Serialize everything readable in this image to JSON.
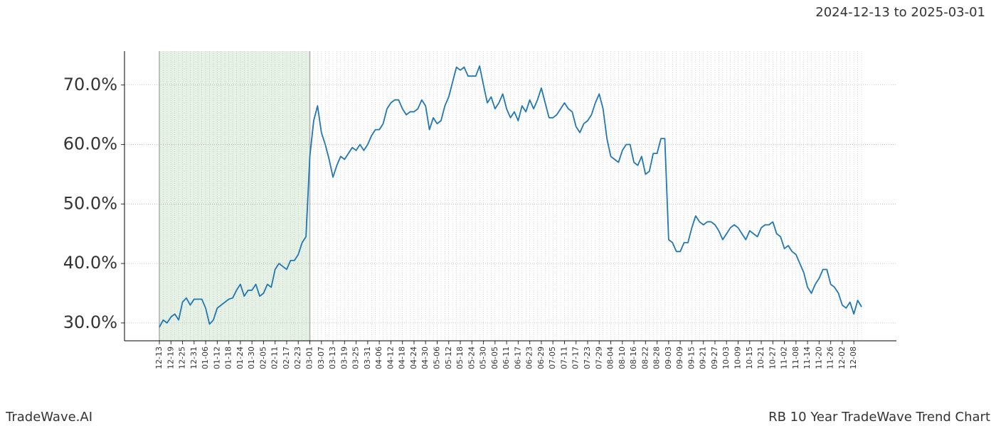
{
  "chart_data": {
    "type": "line",
    "title": "RB 10 Year TradeWave Trend Chart",
    "subtitle": "2024-12-13 to 2025-03-01",
    "brand": "TradeWave.AI",
    "highlight_range": [
      "12-13",
      "03-01"
    ],
    "categories": [
      "12-13",
      null,
      null,
      "12-19",
      null,
      null,
      "12-25",
      null,
      null,
      "12-31",
      null,
      null,
      "01-06",
      null,
      null,
      "01-12",
      null,
      null,
      "01-18",
      null,
      null,
      "01-24",
      null,
      null,
      "01-30",
      null,
      null,
      "02-05",
      null,
      null,
      "02-11",
      null,
      null,
      "02-17",
      null,
      null,
      "02-23",
      null,
      null,
      "03-01",
      null,
      null,
      "03-07",
      null,
      null,
      "03-13",
      null,
      null,
      "03-19",
      null,
      null,
      "03-25",
      null,
      null,
      "03-31",
      null,
      null,
      "04-06",
      null,
      null,
      "04-12",
      null,
      null,
      "04-18",
      null,
      null,
      "04-24",
      null,
      null,
      "04-30",
      null,
      null,
      "05-06",
      null,
      null,
      "05-12",
      null,
      null,
      "05-18",
      null,
      null,
      "05-24",
      null,
      null,
      "05-30",
      null,
      null,
      "06-05",
      null,
      null,
      "06-11",
      null,
      null,
      "06-17",
      null,
      null,
      "06-23",
      null,
      null,
      "06-29",
      null,
      null,
      "07-05",
      null,
      null,
      "07-11",
      null,
      null,
      "07-17",
      null,
      null,
      "07-23",
      null,
      null,
      "07-29",
      null,
      null,
      "08-04",
      null,
      null,
      "08-10",
      null,
      null,
      "08-16",
      null,
      null,
      "08-22",
      null,
      null,
      "08-28",
      null,
      null,
      "09-03",
      null,
      null,
      "09-09",
      null,
      null,
      "09-15",
      null,
      null,
      "09-21",
      null,
      null,
      "09-27",
      null,
      null,
      "10-03",
      null,
      null,
      "10-09",
      null,
      null,
      "10-15",
      null,
      null,
      "10-21",
      null,
      null,
      "10-27",
      null,
      null,
      "11-02",
      null,
      null,
      "11-08",
      null,
      null,
      "11-14",
      null,
      null,
      "11-20",
      null,
      null,
      "11-26",
      null,
      null,
      "12-02",
      null,
      null,
      "12-08",
      null,
      null
    ],
    "series": [
      {
        "color": "#1f77b4",
        "values": [
          29.3,
          30.5,
          30.0,
          31,
          31.5,
          30.5,
          33.5,
          34.2,
          33,
          34,
          34,
          34,
          32.5,
          29.8,
          30.5,
          32.5,
          33,
          33.5,
          34,
          34.2,
          35.5,
          36.5,
          34.5,
          35.5,
          35.5,
          36.5,
          34.5,
          35,
          36.5,
          36,
          39,
          40,
          39.5,
          39,
          40.5,
          40.5,
          41.5,
          43.5,
          44.5,
          58,
          64,
          66.5,
          62,
          60,
          57.5,
          54.5,
          56.5,
          58,
          57.5,
          58.5,
          59.5,
          59,
          60,
          59,
          60,
          61.5,
          62.5,
          62.5,
          63.5,
          66,
          67,
          67.5,
          67.5,
          66,
          65,
          65.5,
          65.5,
          66,
          67.5,
          66.5,
          62.5,
          64.5,
          63.5,
          64,
          66.5,
          68,
          70.5,
          73,
          72.5,
          73,
          71.5,
          71.5,
          71.5,
          73.2,
          70,
          67,
          68,
          66,
          67,
          68.5,
          66,
          64.5,
          65.5,
          64,
          66.5,
          65.5,
          67.5,
          66,
          67.5,
          69.5,
          67,
          64.5,
          64.5,
          65,
          66,
          67,
          66,
          65.5,
          63,
          62,
          63.5,
          64,
          65,
          67,
          68.5,
          66,
          61,
          58,
          57.5,
          57,
          59,
          60,
          60,
          57,
          56.5,
          58,
          55,
          55.5,
          58.5,
          58.5,
          61,
          61,
          44,
          43.5,
          42,
          42,
          43.5,
          43.5,
          46,
          48,
          47,
          46.5,
          47,
          47,
          46.5,
          45.5,
          44,
          45,
          46,
          46.5,
          46,
          45,
          44,
          45.5,
          45,
          44.5,
          46,
          46.5,
          46.5,
          47,
          45,
          44.5,
          42.5,
          43,
          42,
          41.5,
          40,
          38.5,
          36,
          35,
          36.5,
          37.5,
          39,
          39,
          36.5,
          36,
          35,
          33,
          32.5,
          33.5,
          31.5,
          33.8,
          32.7
        ]
      }
    ],
    "ylim": [
      27.0,
      75.7
    ],
    "yticks": [
      {
        "value": 30,
        "label": "30.0%"
      },
      {
        "value": 40,
        "label": "40.0%"
      },
      {
        "value": 50,
        "label": "50.0%"
      },
      {
        "value": 60,
        "label": "60.0%"
      },
      {
        "value": 70,
        "label": "70.0%"
      }
    ],
    "grid": true
  }
}
